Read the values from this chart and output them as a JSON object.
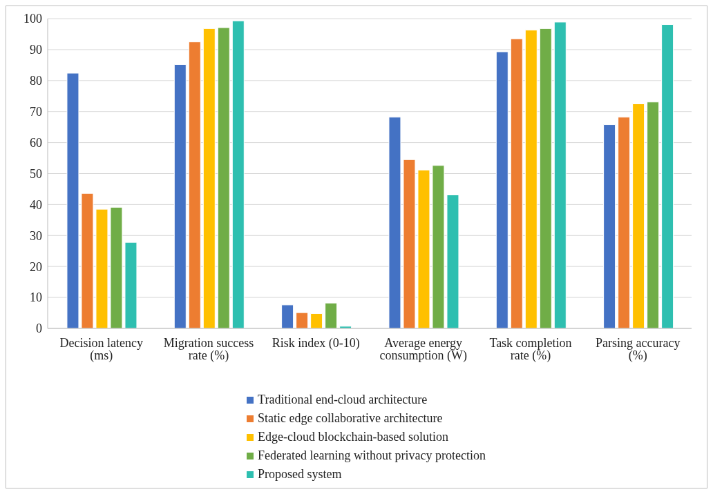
{
  "chart_data": {
    "type": "bar",
    "categories": [
      "Decision latency (ms)",
      "Migration success rate (%)",
      "Risk index (0-10)",
      "Average energy consumption (W)",
      "Task completion rate (%)",
      "Parsing accuracy (%)"
    ],
    "series": [
      {
        "name": "Traditional end-cloud architecture",
        "color": "#4472c4",
        "values": [
          82.4,
          85.2,
          7.6,
          68.2,
          89.3,
          65.8
        ]
      },
      {
        "name": "Static edge collaborative architecture",
        "color": "#ed7d31",
        "values": [
          43.6,
          92.5,
          5.1,
          54.5,
          93.5,
          68.2
        ]
      },
      {
        "name": "Edge-cloud blockchain-based solution",
        "color": "#ffc000",
        "values": [
          38.5,
          96.8,
          4.8,
          51.1,
          96.3,
          72.5
        ]
      },
      {
        "name": "Federated learning without privacy protection",
        "color": "#70ad47",
        "values": [
          39.1,
          97.1,
          8.2,
          52.6,
          96.8,
          73.1
        ]
      },
      {
        "name": "Proposed system",
        "color": "#2ebfb0",
        "values": [
          27.8,
          99.3,
          0.7,
          43.1,
          98.9,
          98.1
        ]
      }
    ],
    "ylim": [
      0,
      100
    ],
    "yticks": [
      0,
      10,
      20,
      30,
      40,
      50,
      60,
      70,
      80,
      90,
      100
    ],
    "grid": "y",
    "legend": "bottom"
  }
}
